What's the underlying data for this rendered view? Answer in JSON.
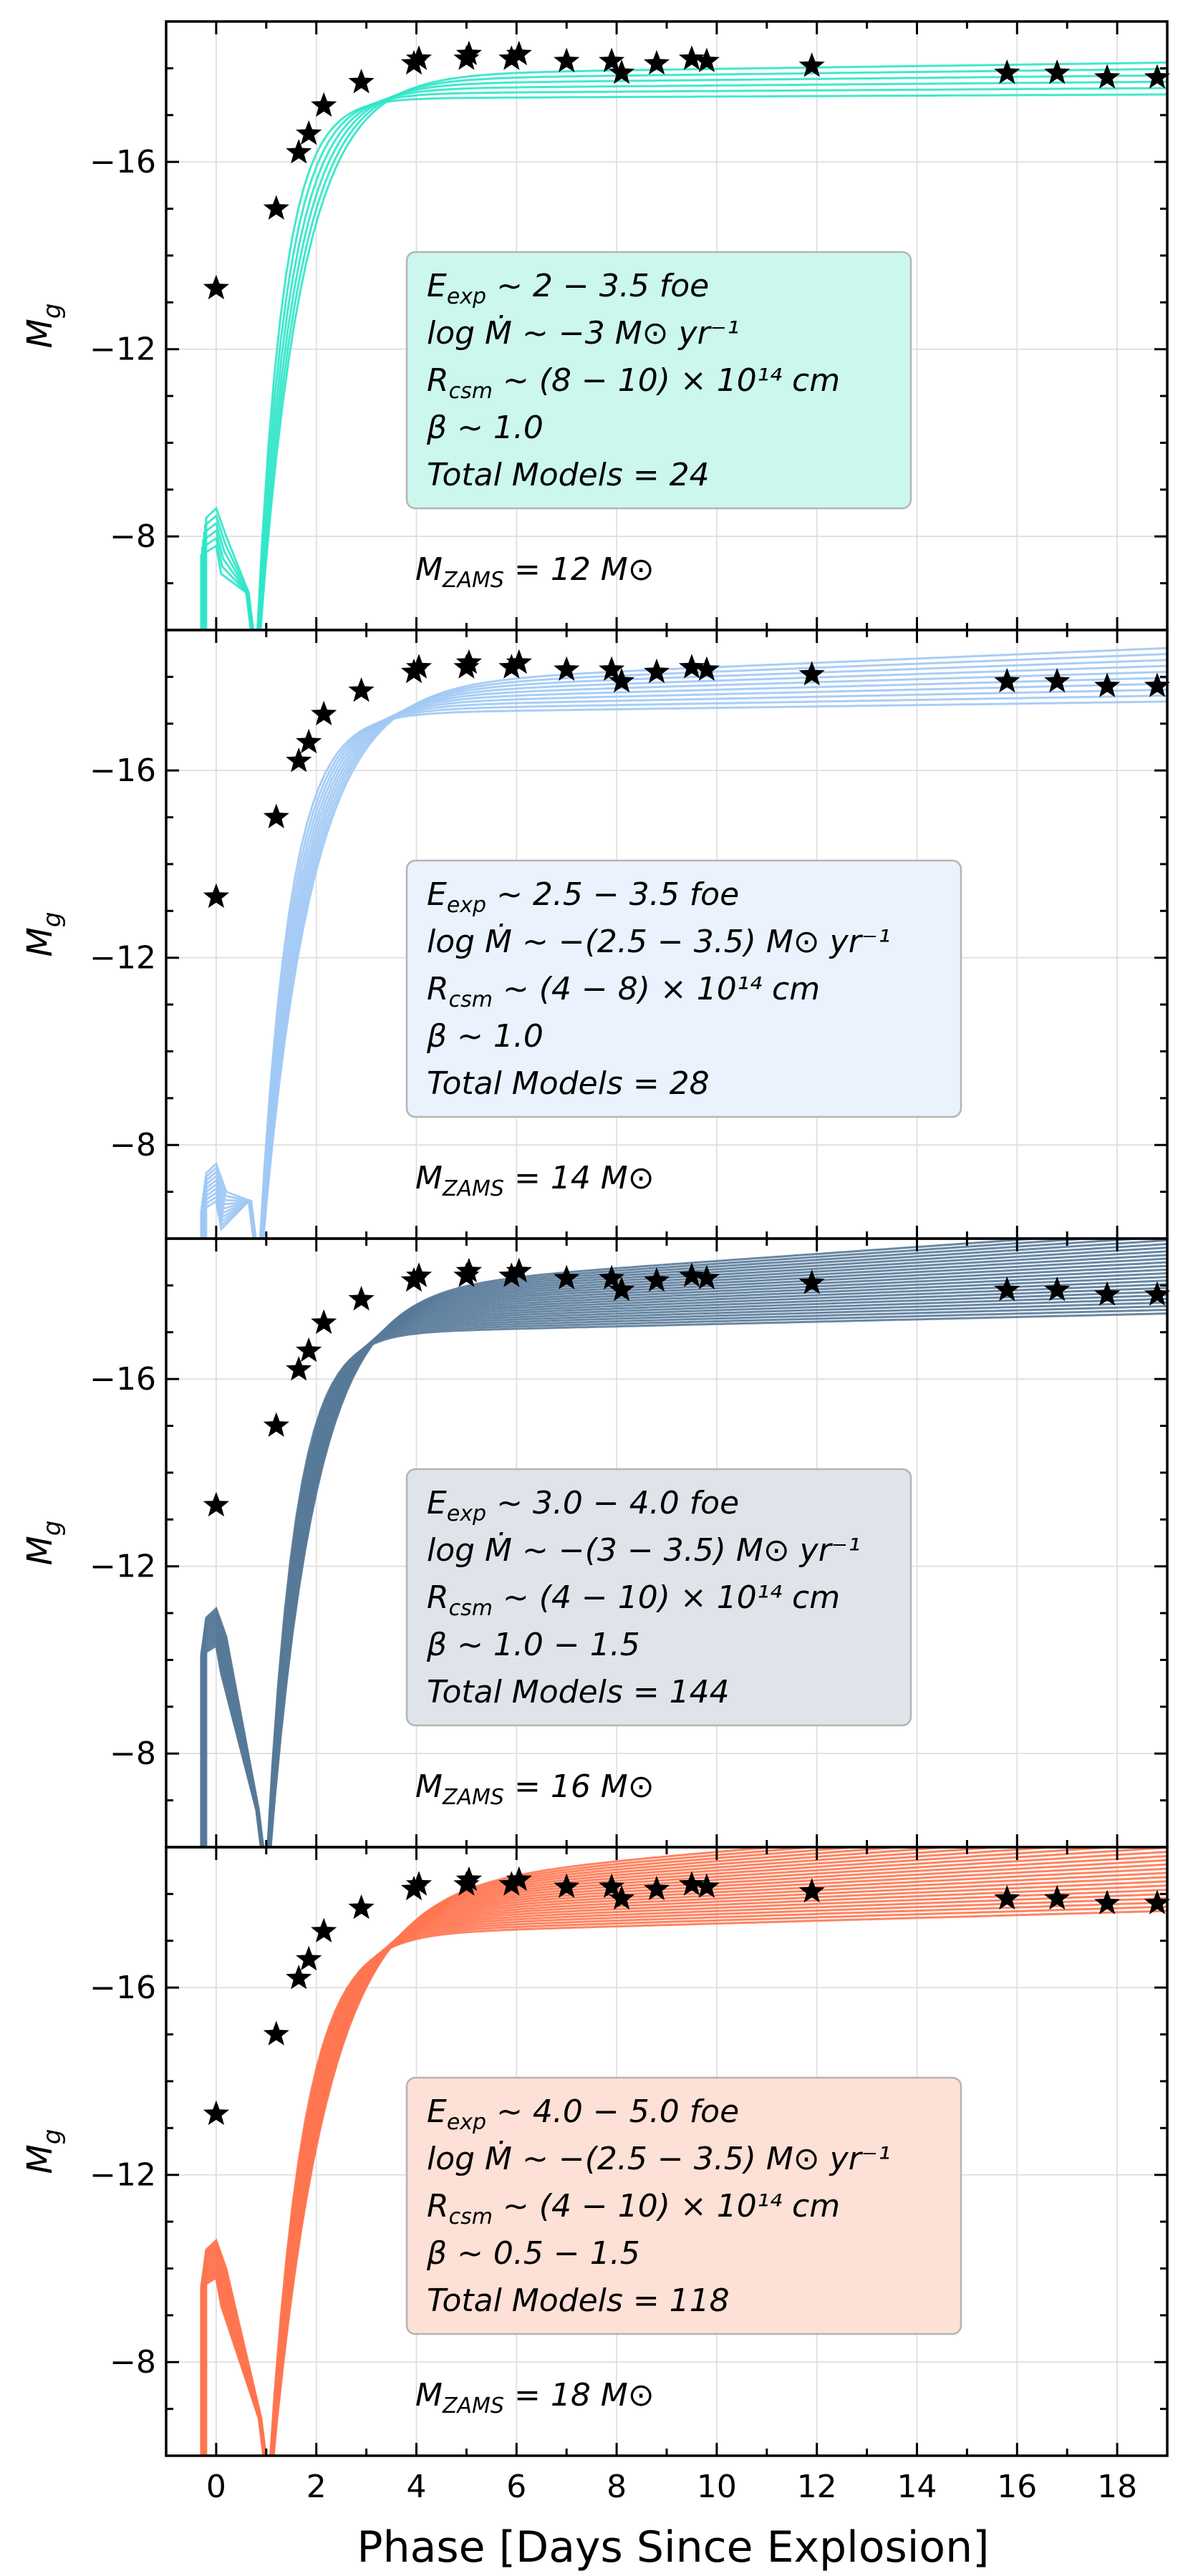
{
  "chart_data": [
    {
      "type": "line",
      "ylabel": "M_g",
      "color": "#2ee6c8",
      "box_fill": "#ccf7ee",
      "params": [
        {
          "name": "E",
          "sub": "exp",
          "text": " ~ 2 − 3.5 foe"
        },
        {
          "name": "log Ṁ",
          "sub": "",
          "text": " ~ −3 M⊙ yr⁻¹"
        },
        {
          "name": "R",
          "sub": "csm",
          "text": " ~ (8 − 10) × 10¹⁴ cm"
        },
        {
          "name": "β",
          "sub": "",
          "text": " ~ 1.0"
        },
        {
          "name": "Total Models",
          "sub": "",
          "text": " = 24"
        }
      ],
      "mass_label": {
        "name": "M",
        "sub": "ZAMS",
        "text": " = 12 M⊙"
      },
      "model": {
        "plateau": -17.6,
        "spread": 0.5,
        "rise": 0.65,
        "slope": 0.01,
        "pre_mag": -8.0,
        "n_lines": 6,
        "dip_day": 0.8
      }
    },
    {
      "type": "line",
      "ylabel": "M_g",
      "color": "#9ec8f5",
      "box_fill": "#eaf3fd",
      "params": [
        {
          "name": "E",
          "sub": "exp",
          "text": " ~ 2.5 − 3.5 foe"
        },
        {
          "name": "log Ṁ",
          "sub": "",
          "text": " ~ −(2.5 − 3.5) M⊙ yr⁻¹"
        },
        {
          "name": "R",
          "sub": "csm",
          "text": " ~ (4 − 8) × 10¹⁴ cm"
        },
        {
          "name": "β",
          "sub": "",
          "text": " ~ 1.0"
        },
        {
          "name": "Total Models",
          "sub": "",
          "text": " = 28"
        }
      ],
      "mass_label": {
        "name": "M",
        "sub": "ZAMS",
        "text": " = 14 M⊙"
      },
      "model": {
        "plateau": -17.5,
        "spread": 0.6,
        "rise": 0.75,
        "slope": 0.03,
        "pre_mag": -7.0,
        "n_lines": 10,
        "dip_day": 0.85
      }
    },
    {
      "type": "line",
      "ylabel": "M_g",
      "color": "#587a99",
      "box_fill": "#dfe4ea",
      "params": [
        {
          "name": "E",
          "sub": "exp",
          "text": " ~ 3.0 − 4.0 foe"
        },
        {
          "name": "log Ṁ",
          "sub": "",
          "text": " ~ −(3 − 3.5) M⊙ yr⁻¹"
        },
        {
          "name": "R",
          "sub": "csm",
          "text": " ~ (4 − 10) × 10¹⁴ cm"
        },
        {
          "name": "β",
          "sub": "",
          "text": " ~ 1.0 − 1.5"
        },
        {
          "name": "Total Models",
          "sub": "",
          "text": " = 144"
        }
      ],
      "mass_label": {
        "name": "M",
        "sub": "ZAMS",
        "text": " = 16 M⊙"
      },
      "model": {
        "plateau": -17.4,
        "spread": 0.9,
        "rise": 0.7,
        "slope": 0.05,
        "pre_mag": -10.5,
        "n_lines": 24,
        "dip_day": 1.0
      }
    },
    {
      "type": "line",
      "ylabel": "M_g",
      "color": "#ff7650",
      "box_fill": "#fde0d6",
      "params": [
        {
          "name": "E",
          "sub": "exp",
          "text": " ~ 4.0 − 5.0 foe"
        },
        {
          "name": "log Ṁ",
          "sub": "",
          "text": " ~ −(2.5 − 3.5) M⊙ yr⁻¹"
        },
        {
          "name": "R",
          "sub": "csm",
          "text": " ~ (4 − 10) × 10¹⁴ cm"
        },
        {
          "name": "β",
          "sub": "",
          "text": " ~ 0.5 − 1.5"
        },
        {
          "name": "Total Models",
          "sub": "",
          "text": " = 118"
        }
      ],
      "mass_label": {
        "name": "M",
        "sub": "ZAMS",
        "text": " = 18 M⊙"
      },
      "model": {
        "plateau": -17.6,
        "spread": 1.0,
        "rise": 0.85,
        "slope": 0.06,
        "pre_mag": -10.0,
        "n_lines": 24,
        "dip_day": 1.05
      }
    }
  ],
  "axes": {
    "xlabel": "Phase [Days Since Explosion]",
    "xlim": [
      -1,
      19
    ],
    "xticks": [
      0,
      2,
      4,
      6,
      8,
      10,
      12,
      14,
      16,
      18
    ],
    "ylim": [
      -6,
      -19
    ],
    "yticks": [
      -8,
      -12,
      -16
    ],
    "grid": true
  },
  "observations": {
    "marker": "star",
    "color": "#000000",
    "x": [
      0.0,
      1.2,
      1.65,
      1.85,
      2.15,
      2.9,
      3.95,
      4.05,
      5.0,
      5.05,
      5.9,
      6.05,
      7.0,
      7.9,
      8.1,
      8.8,
      9.5,
      9.8,
      11.9,
      15.8,
      16.8,
      17.8,
      18.8
    ],
    "y": [
      -13.3,
      -15.0,
      -16.2,
      -16.6,
      -17.2,
      -17.7,
      -18.1,
      -18.2,
      -18.2,
      -18.3,
      -18.2,
      -18.3,
      -18.15,
      -18.15,
      -17.9,
      -18.1,
      -18.2,
      -18.15,
      -18.05,
      -17.9,
      -17.9,
      -17.8,
      -17.8
    ]
  }
}
